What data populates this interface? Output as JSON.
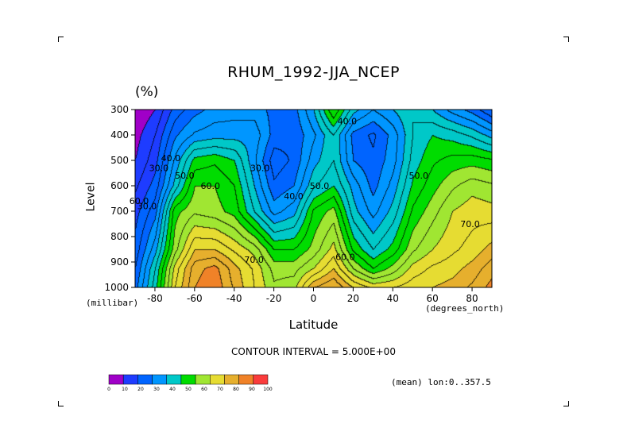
{
  "chart_data": {
    "type": "heatmap",
    "title": "RHUM_1992-JJA_NCEP",
    "units": "(%)",
    "xlabel": "Latitude",
    "ylabel": "Level",
    "x_units": "(degrees_north)",
    "y_units": "(millibar)",
    "xlim": [
      -90,
      90
    ],
    "ylim": [
      1000,
      300
    ],
    "xticks": [
      -80,
      -60,
      -40,
      -20,
      0,
      20,
      40,
      60,
      80
    ],
    "xtick_labels": [
      "-80",
      "-60",
      "-40",
      "-20",
      "0",
      "20",
      "40",
      "60",
      "80"
    ],
    "yticks": [
      300,
      400,
      500,
      600,
      700,
      800,
      900,
      1000
    ],
    "ytick_labels": [
      "300",
      "400",
      "500",
      "600",
      "700",
      "800",
      "900",
      "1000"
    ],
    "contour_interval_text": "CONTOUR INTERVAL = 5.000E+00",
    "mean_info": "(mean) lon:0..357.5",
    "contour_labels": [
      {
        "text": "40.0",
        "x": 17,
        "y": 345
      },
      {
        "text": "30.0",
        "x": -27,
        "y": 530
      },
      {
        "text": "30.0",
        "x": -78,
        "y": 530
      },
      {
        "text": "40.0",
        "x": -72,
        "y": 490
      },
      {
        "text": "50.0",
        "x": -65,
        "y": 560
      },
      {
        "text": "60.0",
        "x": -52,
        "y": 600
      },
      {
        "text": "30.0",
        "x": -84,
        "y": 680
      },
      {
        "text": "40.0",
        "x": -10,
        "y": 640
      },
      {
        "text": "50.0",
        "x": 3,
        "y": 600
      },
      {
        "text": "50.0",
        "x": 53,
        "y": 560
      },
      {
        "text": "60.0",
        "x": 16,
        "y": 880
      },
      {
        "text": "70.0",
        "x": -30,
        "y": 890
      },
      {
        "text": "70.0",
        "x": 79,
        "y": 750
      },
      {
        "text": "60.0",
        "x": -88,
        "y": 660
      }
    ],
    "colorbar": {
      "levels": [
        0,
        10,
        20,
        30,
        40,
        50,
        60,
        70,
        80,
        90,
        100
      ],
      "labels": [
        "0",
        "10",
        "20",
        "30",
        "40",
        "50",
        "60",
        "70",
        "80",
        "90",
        "100"
      ],
      "colors": [
        "#a000c8",
        "#1e3cff",
        "#0064ff",
        "#0096ff",
        "#00c8c8",
        "#00dc00",
        "#a0e632",
        "#e6dc32",
        "#e6af2d",
        "#f08228",
        "#fa3c3c"
      ]
    },
    "grid_lat": [
      -90,
      -80,
      -70,
      -60,
      -50,
      -40,
      -30,
      -20,
      -10,
      0,
      10,
      20,
      30,
      40,
      50,
      60,
      70,
      80,
      90
    ],
    "grid_lev": [
      1000,
      925,
      850,
      700,
      600,
      500,
      400,
      300
    ],
    "values": [
      [
        28,
        48,
        75,
        90,
        94,
        84,
        75,
        66,
        68,
        85,
        90,
        80,
        74,
        75,
        78,
        80,
        82,
        86,
        92
      ],
      [
        25,
        45,
        72,
        88,
        92,
        82,
        74,
        63,
        63,
        70,
        80,
        65,
        55,
        62,
        72,
        76,
        78,
        82,
        88
      ],
      [
        22,
        38,
        63,
        80,
        80,
        74,
        68,
        55,
        55,
        62,
        72,
        54,
        45,
        52,
        64,
        70,
        74,
        77,
        82
      ],
      [
        18,
        28,
        58,
        64,
        62,
        58,
        45,
        33,
        38,
        56,
        62,
        42,
        33,
        42,
        56,
        63,
        70,
        73,
        72
      ],
      [
        14,
        22,
        42,
        60,
        60,
        55,
        40,
        26,
        30,
        44,
        50,
        38,
        28,
        37,
        51,
        58,
        64,
        68,
        66
      ],
      [
        10,
        18,
        36,
        52,
        54,
        50,
        36,
        22,
        26,
        38,
        45,
        30,
        26,
        33,
        47,
        54,
        57,
        58,
        56
      ],
      [
        8,
        15,
        29,
        36,
        38,
        38,
        38,
        28,
        26,
        34,
        45,
        28,
        24,
        32,
        45,
        50,
        48,
        44,
        38
      ],
      [
        5,
        10,
        22,
        28,
        32,
        33,
        33,
        28,
        28,
        40,
        60,
        42,
        35,
        40,
        45,
        40,
        33,
        28,
        20
      ]
    ]
  }
}
